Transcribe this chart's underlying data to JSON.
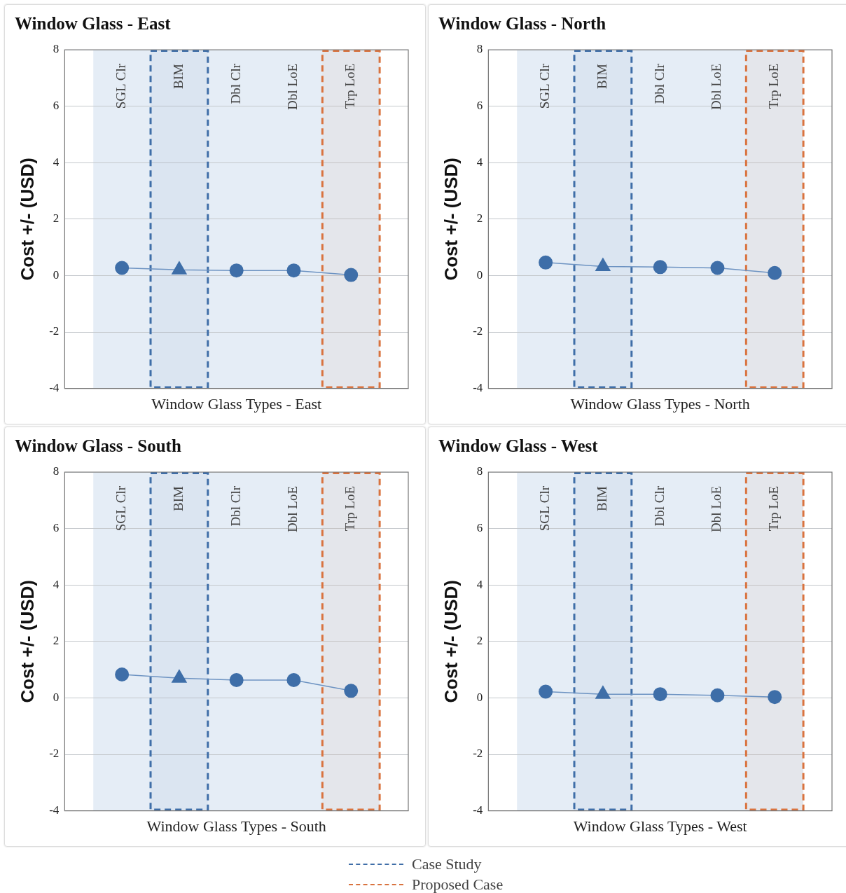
{
  "chart_data": [
    {
      "type": "line",
      "title": "Window Glass - East",
      "xlabel": "Window Glass Types - East",
      "ylabel": "Cost +/- (USD)",
      "categories": [
        "SGL Clr",
        "BIM",
        "Dbl Clr",
        "Dbl LoE",
        "Trp LoE"
      ],
      "ylim": [
        -4,
        8
      ],
      "yticks": [
        -4,
        -2,
        0,
        2,
        4,
        6,
        8
      ],
      "grid": "y",
      "legend": "bottom",
      "series": [
        {
          "type": "line",
          "color": "#6d93c2",
          "marker": "none",
          "values": [
            0.27,
            0.2,
            0.18,
            0.18,
            0.02
          ]
        },
        {
          "type": "scatter",
          "color": "#3e6ea8",
          "marker": "circle",
          "x": [
            "SGL Clr",
            "Dbl Clr",
            "Dbl LoE",
            "Trp LoE"
          ],
          "values": [
            0.27,
            0.18,
            0.18,
            0.02
          ]
        },
        {
          "type": "scatter",
          "color": "#3e6ea8",
          "marker": "triangle",
          "x": [
            "BIM"
          ],
          "values": [
            0.2
          ]
        }
      ],
      "bands": [
        {
          "axis": "x",
          "from": "SGL Clr",
          "to": "Trp LoE",
          "color": "#e5edf6"
        },
        {
          "axis": "x",
          "from": "BIM",
          "to": "BIM",
          "label": "Case Study",
          "color": "#3f6ea8"
        },
        {
          "axis": "x",
          "from": "Trp LoE",
          "to": "Trp LoE",
          "label": "Proposed Case",
          "color": "#d9733f"
        }
      ]
    },
    {
      "type": "line",
      "title": "Window Glass - North",
      "xlabel": "Window Glass Types - North",
      "ylabel": "Cost +/- (USD)",
      "categories": [
        "SGL Clr",
        "BIM",
        "Dbl Clr",
        "Dbl LoE",
        "Trp LoE"
      ],
      "ylim": [
        -4,
        8
      ],
      "yticks": [
        -4,
        -2,
        0,
        2,
        4,
        6,
        8
      ],
      "grid": "y",
      "series": [
        {
          "type": "line",
          "color": "#6d93c2",
          "marker": "none",
          "values": [
            0.46,
            0.32,
            0.3,
            0.27,
            0.09
          ]
        },
        {
          "type": "scatter",
          "color": "#3e6ea8",
          "marker": "circle",
          "x": [
            "SGL Clr",
            "Dbl Clr",
            "Dbl LoE",
            "Trp LoE"
          ],
          "values": [
            0.46,
            0.3,
            0.27,
            0.09
          ]
        },
        {
          "type": "scatter",
          "color": "#3e6ea8",
          "marker": "triangle",
          "x": [
            "BIM"
          ],
          "values": [
            0.32
          ]
        }
      ],
      "bands": [
        {
          "axis": "x",
          "from": "SGL Clr",
          "to": "Trp LoE",
          "color": "#e5edf6"
        },
        {
          "axis": "x",
          "from": "BIM",
          "to": "BIM",
          "color": "#3f6ea8"
        },
        {
          "axis": "x",
          "from": "Trp LoE",
          "to": "Trp LoE",
          "color": "#d9733f"
        }
      ]
    },
    {
      "type": "line",
      "title": "Window Glass - South",
      "xlabel": "Window Glass Types - South",
      "ylabel": "Cost +/- (USD)",
      "categories": [
        "SGL Clr",
        "BIM",
        "Dbl Clr",
        "Dbl LoE",
        "Trp LoE"
      ],
      "ylim": [
        -4,
        8
      ],
      "yticks": [
        -4,
        -2,
        0,
        2,
        4,
        6,
        8
      ],
      "grid": "y",
      "series": [
        {
          "type": "line",
          "color": "#6d93c2",
          "marker": "none",
          "values": [
            0.83,
            0.7,
            0.63,
            0.63,
            0.25
          ]
        },
        {
          "type": "scatter",
          "color": "#3e6ea8",
          "marker": "circle",
          "x": [
            "SGL Clr",
            "Dbl Clr",
            "Dbl LoE",
            "Trp LoE"
          ],
          "values": [
            0.83,
            0.63,
            0.63,
            0.25
          ]
        },
        {
          "type": "scatter",
          "color": "#3e6ea8",
          "marker": "triangle",
          "x": [
            "BIM"
          ],
          "values": [
            0.7
          ]
        }
      ],
      "bands": [
        {
          "axis": "x",
          "from": "SGL Clr",
          "to": "Trp LoE",
          "color": "#e5edf6"
        },
        {
          "axis": "x",
          "from": "BIM",
          "to": "BIM",
          "color": "#3f6ea8"
        },
        {
          "axis": "x",
          "from": "Trp LoE",
          "to": "Trp LoE",
          "color": "#d9733f"
        }
      ]
    },
    {
      "type": "line",
      "title": "Window Glass - West",
      "xlabel": "Window Glass Types - West",
      "ylabel": "Cost +/- (USD)",
      "categories": [
        "SGL Clr",
        "BIM",
        "Dbl Clr",
        "Dbl LoE",
        "Trp LoE"
      ],
      "ylim": [
        -4,
        8
      ],
      "yticks": [
        -4,
        -2,
        0,
        2,
        4,
        6,
        8
      ],
      "grid": "y",
      "series": [
        {
          "type": "line",
          "color": "#6d93c2",
          "marker": "none",
          "values": [
            0.22,
            0.13,
            0.13,
            0.09,
            0.03
          ]
        },
        {
          "type": "scatter",
          "color": "#3e6ea8",
          "marker": "circle",
          "x": [
            "SGL Clr",
            "Dbl Clr",
            "Dbl LoE",
            "Trp LoE"
          ],
          "values": [
            0.22,
            0.13,
            0.09,
            0.03
          ]
        },
        {
          "type": "scatter",
          "color": "#3e6ea8",
          "marker": "triangle",
          "x": [
            "BIM"
          ],
          "values": [
            0.13
          ]
        }
      ],
      "bands": [
        {
          "axis": "x",
          "from": "SGL Clr",
          "to": "Trp LoE",
          "color": "#e5edf6"
        },
        {
          "axis": "x",
          "from": "BIM",
          "to": "BIM",
          "color": "#3f6ea8"
        },
        {
          "axis": "x",
          "from": "Trp LoE",
          "to": "Trp LoE",
          "color": "#d9733f"
        }
      ]
    }
  ]
}
